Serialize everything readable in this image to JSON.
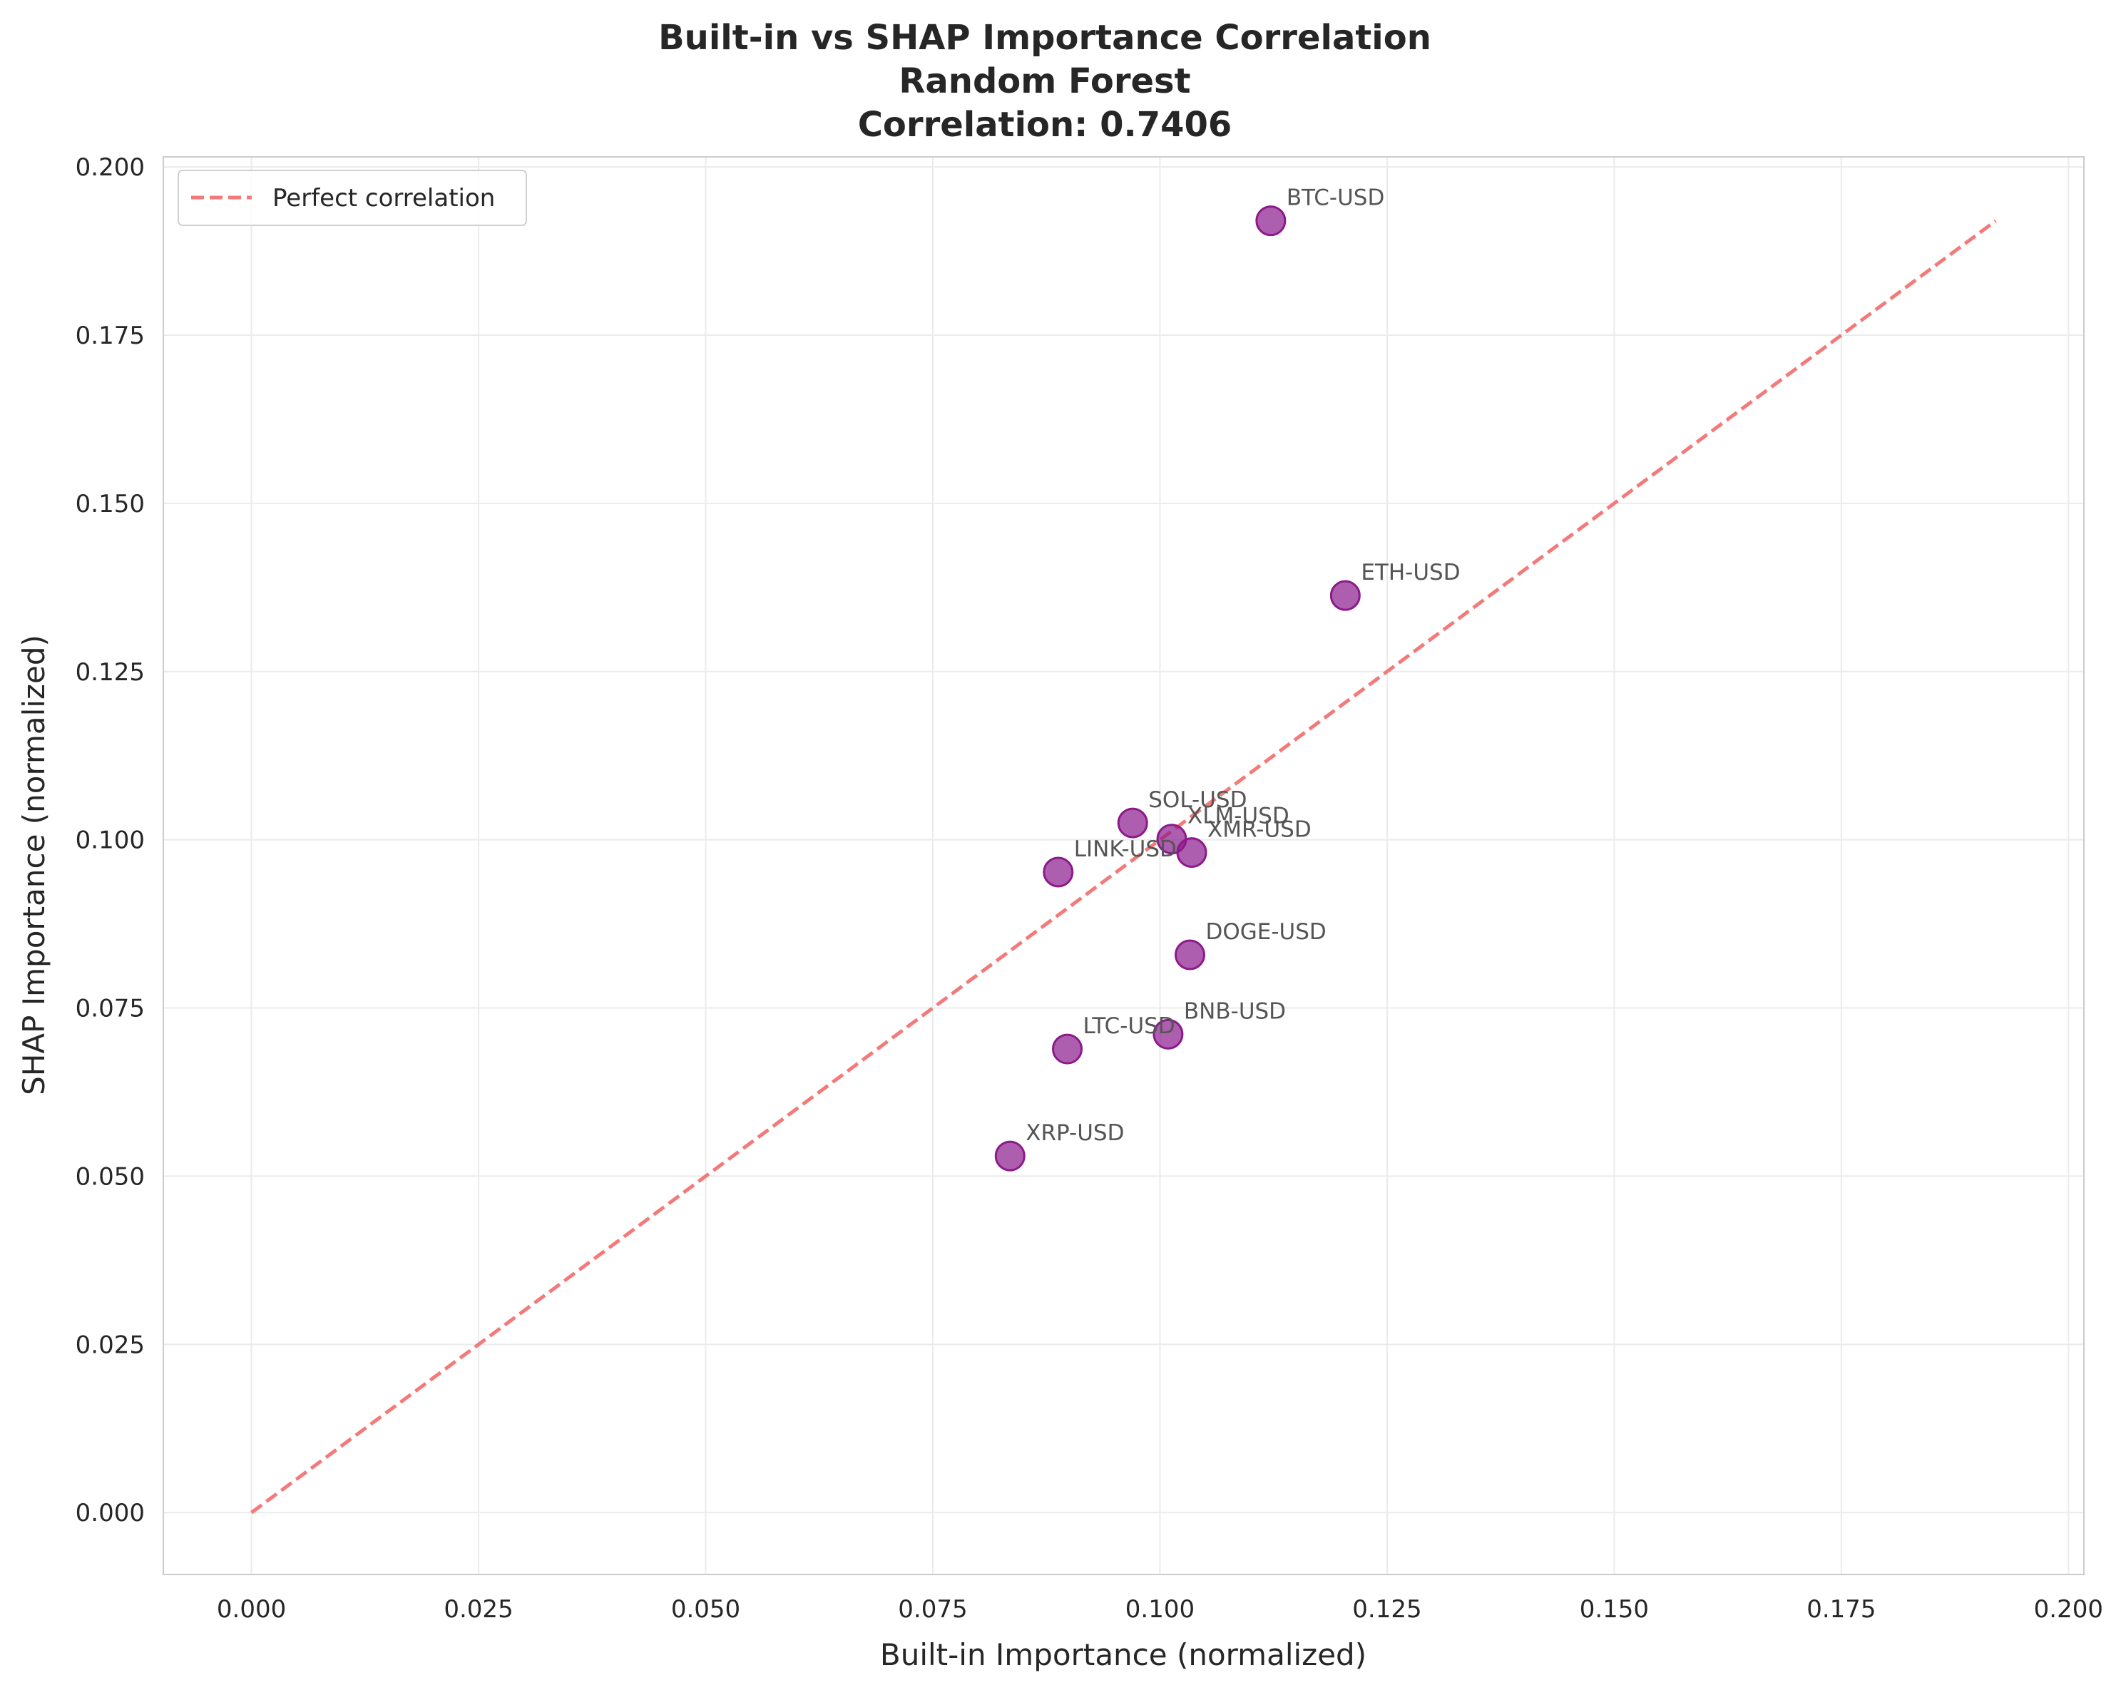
{
  "chart_data": {
    "type": "scatter",
    "title": [
      "Built-in vs SHAP Importance Correlation",
      "Random Forest",
      "Correlation: 0.7406"
    ],
    "xlabel": "Built-in Importance (normalized)",
    "ylabel": "SHAP Importance (normalized)",
    "xlim": [
      -0.0097,
      0.2017
    ],
    "ylim": [
      -0.0092,
      0.2015
    ],
    "xticks": [
      "0.000",
      "0.025",
      "0.050",
      "0.075",
      "0.100",
      "0.125",
      "0.150",
      "0.175",
      "0.200"
    ],
    "yticks": [
      "0.000",
      "0.025",
      "0.050",
      "0.075",
      "0.100",
      "0.125",
      "0.150",
      "0.175",
      "0.200"
    ],
    "grid": true,
    "legend": {
      "position": "top-left",
      "entries": [
        "Perfect correlation"
      ]
    },
    "reference_line": {
      "name": "Perfect correlation",
      "from": [
        0.0,
        0.0
      ],
      "to": [
        0.192,
        0.192
      ],
      "style": "dashed",
      "color": "#f47a7a"
    },
    "marker_color": "#8b1a8b",
    "points": [
      {
        "label": "BTC-USD",
        "x": 0.1122,
        "y": 0.192
      },
      {
        "label": "ETH-USD",
        "x": 0.1204,
        "y": 0.1363
      },
      {
        "label": "SOL-USD",
        "x": 0.097,
        "y": 0.1025
      },
      {
        "label": "XLM-USD",
        "x": 0.1013,
        "y": 0.1001
      },
      {
        "label": "XMR-USD",
        "x": 0.1035,
        "y": 0.0981
      },
      {
        "label": "LINK-USD",
        "x": 0.0888,
        "y": 0.0952
      },
      {
        "label": "DOGE-USD",
        "x": 0.1033,
        "y": 0.0829
      },
      {
        "label": "BNB-USD",
        "x": 0.1009,
        "y": 0.0711
      },
      {
        "label": "LTC-USD",
        "x": 0.0898,
        "y": 0.0689
      },
      {
        "label": "XRP-USD",
        "x": 0.0835,
        "y": 0.053
      }
    ]
  }
}
